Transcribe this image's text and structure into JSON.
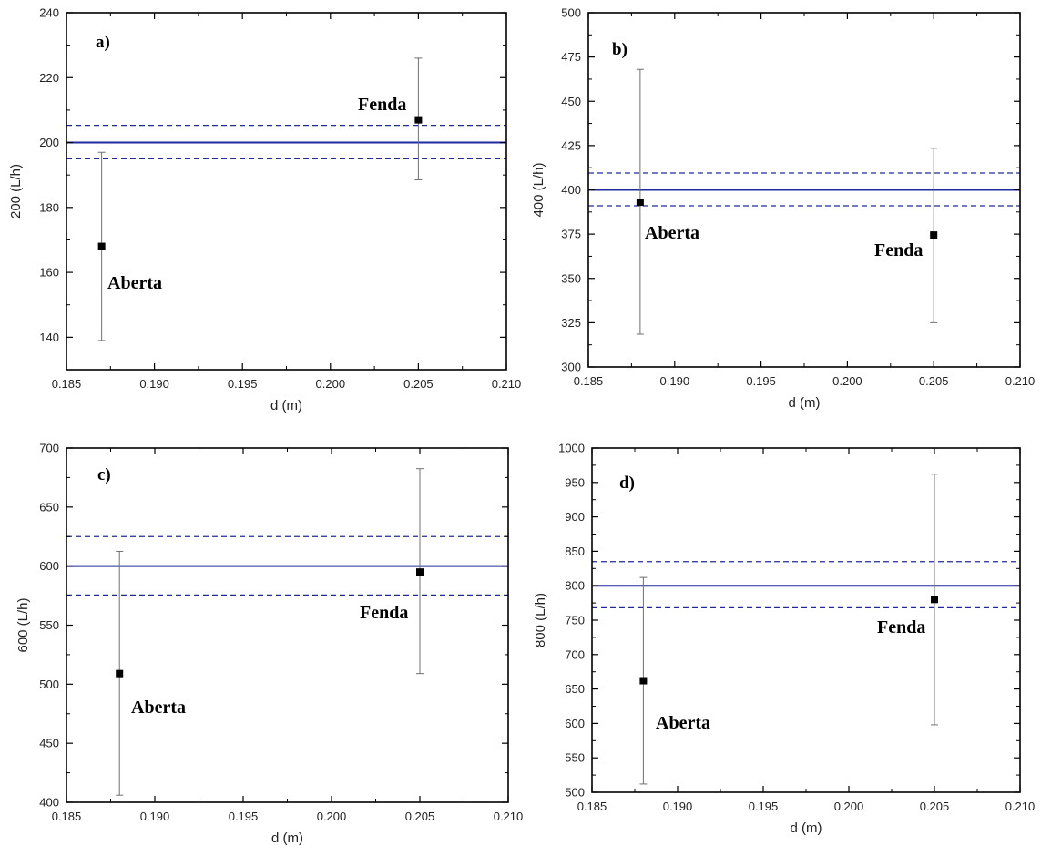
{
  "chart_data": [
    {
      "type": "scatter",
      "panel_label": "a)",
      "xlabel": "d (m)",
      "ylabel": "200 (L/h)",
      "xlim": [
        0.185,
        0.21
      ],
      "ylim": [
        130,
        240
      ],
      "xticks": [
        "0.185",
        "0.190",
        "0.195",
        "0.200",
        "0.205",
        "0.210"
      ],
      "yticks": [
        "140",
        "160",
        "180",
        "200",
        "220",
        "240"
      ],
      "reference_line": 200,
      "reference_band": [
        195,
        205.3
      ],
      "points": [
        {
          "label": "Aberta",
          "x": 0.187,
          "y": 168,
          "err_low": 139,
          "err_high": 197
        },
        {
          "label": "Fenda",
          "x": 0.205,
          "y": 207,
          "err_low": 188.5,
          "err_high": 226
        }
      ]
    },
    {
      "type": "scatter",
      "panel_label": "b)",
      "xlabel": "d (m)",
      "ylabel": "400 (L/h)",
      "xlim": [
        0.185,
        0.21
      ],
      "ylim": [
        300,
        500
      ],
      "xticks": [
        "0.185",
        "0.190",
        "0.195",
        "0.200",
        "0.205",
        "0.210"
      ],
      "yticks": [
        "300",
        "325",
        "350",
        "375",
        "400",
        "425",
        "450",
        "475",
        "500"
      ],
      "reference_line": 400,
      "reference_band": [
        391,
        409.5
      ],
      "points": [
        {
          "label": "Aberta",
          "x": 0.188,
          "y": 393,
          "err_low": 318.5,
          "err_high": 468
        },
        {
          "label": "Fenda",
          "x": 0.205,
          "y": 374.5,
          "err_low": 325,
          "err_high": 423.5
        }
      ]
    },
    {
      "type": "scatter",
      "panel_label": "c)",
      "xlabel": "d (m)",
      "ylabel": "600 (L/h)",
      "xlim": [
        0.185,
        0.21
      ],
      "ylim": [
        400,
        700
      ],
      "xticks": [
        "0.185",
        "0.190",
        "0.195",
        "0.200",
        "0.205",
        "0.210"
      ],
      "yticks": [
        "400",
        "450",
        "500",
        "550",
        "600",
        "650",
        "700"
      ],
      "reference_line": 600,
      "reference_band": [
        575.5,
        625
      ],
      "points": [
        {
          "label": "Aberta",
          "x": 0.188,
          "y": 509,
          "err_low": 406,
          "err_high": 612.5
        },
        {
          "label": "Fenda",
          "x": 0.205,
          "y": 595,
          "err_low": 509,
          "err_high": 682.5
        }
      ]
    },
    {
      "type": "scatter",
      "panel_label": "d)",
      "xlabel": "d (m)",
      "ylabel": "800 (L/h)",
      "xlim": [
        0.185,
        0.21
      ],
      "ylim": [
        500,
        1000
      ],
      "xticks": [
        "0.185",
        "0.190",
        "0.195",
        "0.200",
        "0.205",
        "0.210"
      ],
      "yticks": [
        "500",
        "550",
        "600",
        "650",
        "700",
        "750",
        "800",
        "850",
        "900",
        "950",
        "1000"
      ],
      "reference_line": 800,
      "reference_band": [
        768,
        835
      ],
      "points": [
        {
          "label": "Aberta",
          "x": 0.188,
          "y": 662,
          "err_low": 512,
          "err_high": 812
        },
        {
          "label": "Fenda",
          "x": 0.205,
          "y": 780,
          "err_low": 598,
          "err_high": 962
        }
      ]
    }
  ]
}
